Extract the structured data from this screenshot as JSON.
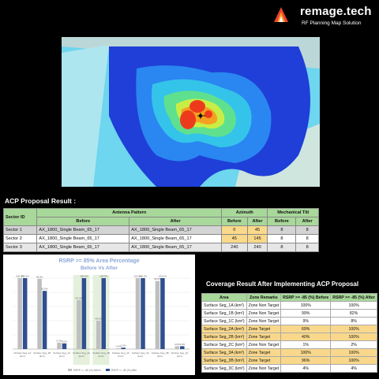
{
  "header": {
    "brand": "remage.tech",
    "subtitle": "RF Planning Map Solution",
    "logo_icon": "remage-flame-logo-icon"
  },
  "map": {
    "icon": "coverage-heatmap"
  },
  "acp": {
    "title": "ACP Proposal Result :",
    "headers": {
      "sector_id": "Sector ID",
      "antenna_pattern": "Antenna Pattern",
      "azimuth": "Azimuth",
      "mech_tilt": "Mechanical Tilt",
      "before": "Before",
      "after": "After"
    },
    "rows": [
      {
        "sector": "Sector 1",
        "ant_before": "AX_1800_Single Beam_65_17",
        "ant_after": "AX_1800_Single Beam_65_17",
        "az_before": "0",
        "az_after": "45",
        "tilt_before": "8",
        "tilt_after": "8"
      },
      {
        "sector": "Sector 2",
        "ant_before": "AX_1800_Single Beam_65_17",
        "ant_after": "AX_1800_Single Beam_65_17",
        "az_before": "45",
        "az_after": "145",
        "tilt_before": "8",
        "tilt_after": "8"
      },
      {
        "sector": "Sector 3",
        "ant_before": "AX_1800_Single Beam_65_17",
        "ant_after": "AX_1800_Single Beam_65_17",
        "az_before": "240",
        "az_after": "240",
        "tilt_before": "8",
        "tilt_after": "8"
      }
    ]
  },
  "chart_data": {
    "type": "bar",
    "title": "RSRP >= 85% Area Percentage",
    "subtitle": "Before Vs After",
    "categories": [
      "Surface Seg_1A (km²)",
      "Surface Seg_1B (km²)",
      "Surface Seg_1C (km²)",
      "Surface Seg_2A (km²)",
      "Surface Seg_2B (km²)",
      "Surface Seg_2C (km²)",
      "Surface Seg_3A (km²)",
      "Surface Seg_3B (km²)",
      "Surface Seg_3C (km²)"
    ],
    "series": [
      {
        "name": "RSRP >= -85 (%) Before",
        "color": "#bfbfbf",
        "values": [
          100,
          99,
          9,
          69,
          40,
          1,
          100,
          96,
          4
        ]
      },
      {
        "name": "RSRP >= -85 (%) After",
        "color": "#2f4f8f",
        "values": [
          100,
          82,
          8,
          100,
          100,
          2,
          100,
          100,
          4
        ]
      }
    ],
    "highlighted": [
      "Surface Seg_2A (km²)",
      "Surface Seg_2B (km²)"
    ],
    "ylim": [
      0,
      100
    ],
    "legend": "bottom"
  },
  "coverage": {
    "title": "Coverage Result After Implementing ACP Proposal",
    "headers": {
      "area": "Area",
      "zone": "Zone Remarks",
      "before": "RSRP >= -85 (%) Before",
      "after": "RSRP >= -85 (%) After"
    },
    "rows": [
      {
        "area": "Surface Seg_1A (km²)",
        "zone": "Zone Non Target",
        "before": "100%",
        "after": "100%",
        "target": false
      },
      {
        "area": "Surface Seg_1B (km²)",
        "zone": "Zone Non Target",
        "before": "99%",
        "after": "82%",
        "target": false
      },
      {
        "area": "Surface Seg_1C (km²)",
        "zone": "Zone Non Target",
        "before": "9%",
        "after": "8%",
        "target": false
      },
      {
        "area": "Surface Seg_2A (km²)",
        "zone": "Zone Target",
        "before": "69%",
        "after": "100%",
        "target": true
      },
      {
        "area": "Surface Seg_2B (km²)",
        "zone": "Zone Target",
        "before": "40%",
        "after": "100%",
        "target": true
      },
      {
        "area": "Surface Seg_2C (km²)",
        "zone": "Zone Non Target",
        "before": "1%",
        "after": "2%",
        "target": false
      },
      {
        "area": "Surface Seg_3A (km²)",
        "zone": "Zone Target",
        "before": "100%",
        "after": "100%",
        "target": true
      },
      {
        "area": "Surface Seg_3B (km²)",
        "zone": "Zone Target",
        "before": "96%",
        "after": "100%",
        "target": true
      },
      {
        "area": "Surface Seg_3C (km²)",
        "zone": "Zone Non Target",
        "before": "4%",
        "after": "4%",
        "target": false
      }
    ]
  }
}
